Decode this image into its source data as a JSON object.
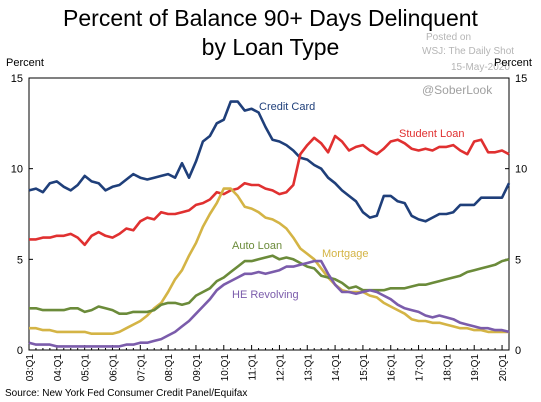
{
  "header": {
    "title": "Percent of Balance 90+ Days Delinquent\nby Loan Type",
    "watermark_line1": "Posted on",
    "watermark_line2": "WSJ: The Daily Shot",
    "watermark_date": "15-May-2020",
    "handle": "@SoberLook"
  },
  "axis": {
    "left_label": "Percent",
    "right_label": "Percent"
  },
  "footer": {
    "source": "Source: New York Fed Consumer Credit Panel/Equifax"
  },
  "chart_data": {
    "type": "line",
    "ylim": [
      0,
      15
    ],
    "yticks": [
      0,
      5,
      10,
      15
    ],
    "xlim": [
      0,
      69
    ],
    "x_tick_labels": [
      "03:Q1",
      "04:Q1",
      "05:Q1",
      "06:Q1",
      "07:Q1",
      "08:Q1",
      "09:Q1",
      "10:Q1",
      "11:Q1",
      "12:Q1",
      "13:Q1",
      "14:Q1",
      "15:Q1",
      "16:Q1",
      "17:Q1",
      "18:Q1",
      "19:Q1",
      "20:Q1"
    ],
    "series": [
      {
        "name": "Credit Card",
        "color": "#1f3f7a",
        "values": [
          8.8,
          8.9,
          8.7,
          9.2,
          9.3,
          9.0,
          8.8,
          9.1,
          9.6,
          9.3,
          9.2,
          8.8,
          9.0,
          9.1,
          9.4,
          9.7,
          9.5,
          9.4,
          9.5,
          9.6,
          9.7,
          9.5,
          10.3,
          9.5,
          10.4,
          11.5,
          11.8,
          12.5,
          12.7,
          13.7,
          13.7,
          13.2,
          13.3,
          13.1,
          12.3,
          11.6,
          11.5,
          11.3,
          11.0,
          10.6,
          10.5,
          10.2,
          10.0,
          9.5,
          9.2,
          8.8,
          8.5,
          8.2,
          7.6,
          7.3,
          7.4,
          8.5,
          8.5,
          8.2,
          8.1,
          7.4,
          7.2,
          7.1,
          7.3,
          7.5,
          7.5,
          7.6,
          8.0,
          8.0,
          8.0,
          8.4,
          8.4,
          8.4,
          8.4,
          9.2
        ]
      },
      {
        "name": "Student Loan",
        "color": "#e03030",
        "values": [
          6.1,
          6.1,
          6.2,
          6.2,
          6.3,
          6.3,
          6.4,
          6.2,
          5.8,
          6.3,
          6.5,
          6.3,
          6.2,
          6.4,
          6.7,
          6.6,
          7.1,
          7.3,
          7.2,
          7.6,
          7.5,
          7.5,
          7.6,
          7.7,
          8.0,
          8.1,
          8.3,
          8.7,
          8.6,
          8.8,
          8.9,
          9.2,
          9.1,
          9.1,
          8.9,
          8.8,
          8.6,
          8.7,
          9.1,
          10.8,
          11.3,
          11.7,
          11.4,
          10.9,
          11.8,
          11.5,
          11.0,
          11.2,
          11.3,
          11.0,
          10.8,
          11.1,
          11.5,
          11.6,
          11.4,
          11.1,
          11.0,
          11.1,
          11.0,
          11.2,
          11.2,
          11.3,
          11.0,
          10.8,
          11.5,
          11.6,
          10.9,
          10.9,
          11.0,
          10.8
        ]
      },
      {
        "name": "Mortgage",
        "color": "#d4b445",
        "values": [
          1.2,
          1.2,
          1.1,
          1.1,
          1.0,
          1.0,
          1.0,
          1.0,
          1.0,
          0.9,
          0.9,
          0.9,
          0.9,
          1.0,
          1.2,
          1.4,
          1.6,
          1.9,
          2.3,
          2.6,
          3.2,
          3.9,
          4.4,
          5.2,
          5.9,
          6.8,
          7.5,
          8.1,
          8.9,
          8.9,
          8.5,
          7.9,
          7.8,
          7.6,
          7.3,
          7.2,
          7.0,
          6.7,
          6.2,
          5.6,
          5.3,
          5.0,
          4.5,
          4.0,
          3.6,
          3.3,
          3.2,
          3.2,
          3.2,
          3.0,
          2.9,
          2.6,
          2.4,
          2.2,
          2.0,
          1.7,
          1.6,
          1.6,
          1.5,
          1.5,
          1.4,
          1.3,
          1.2,
          1.2,
          1.1,
          1.1,
          1.0,
          1.0,
          1.0,
          1.0
        ]
      },
      {
        "name": "Auto Loan",
        "color": "#6b8b3a",
        "values": [
          2.3,
          2.3,
          2.2,
          2.2,
          2.2,
          2.2,
          2.3,
          2.3,
          2.1,
          2.2,
          2.4,
          2.3,
          2.2,
          2.0,
          2.0,
          2.1,
          2.1,
          2.1,
          2.2,
          2.5,
          2.6,
          2.6,
          2.5,
          2.6,
          3.0,
          3.2,
          3.4,
          3.8,
          4.0,
          4.3,
          4.6,
          4.9,
          4.9,
          5.0,
          5.1,
          5.2,
          5.0,
          5.1,
          5.0,
          4.8,
          4.6,
          4.5,
          4.1,
          4.0,
          3.9,
          3.7,
          3.4,
          3.5,
          3.3,
          3.3,
          3.3,
          3.3,
          3.4,
          3.4,
          3.4,
          3.5,
          3.6,
          3.6,
          3.7,
          3.8,
          3.9,
          4.0,
          4.1,
          4.3,
          4.4,
          4.5,
          4.6,
          4.7,
          4.9,
          5.0
        ]
      },
      {
        "name": "HE Revolving",
        "color": "#7b5cab",
        "values": [
          0.4,
          0.3,
          0.3,
          0.3,
          0.2,
          0.2,
          0.2,
          0.2,
          0.2,
          0.2,
          0.2,
          0.2,
          0.2,
          0.2,
          0.3,
          0.3,
          0.4,
          0.4,
          0.5,
          0.6,
          0.8,
          1.0,
          1.3,
          1.6,
          2.0,
          2.4,
          2.8,
          3.3,
          3.6,
          3.8,
          4.0,
          4.2,
          4.2,
          4.3,
          4.2,
          4.3,
          4.4,
          4.6,
          4.6,
          4.7,
          4.8,
          4.9,
          4.9,
          4.2,
          3.6,
          3.2,
          3.2,
          3.1,
          3.2,
          3.3,
          3.2,
          3.0,
          2.8,
          2.5,
          2.3,
          2.2,
          2.1,
          1.9,
          1.8,
          1.9,
          1.8,
          1.7,
          1.5,
          1.4,
          1.3,
          1.2,
          1.2,
          1.1,
          1.1,
          1.0
        ]
      }
    ],
    "series_labels": [
      "Credit Card",
      "Student Loan",
      "Mortgage",
      "Auto Loan",
      "HE Revolving"
    ]
  }
}
